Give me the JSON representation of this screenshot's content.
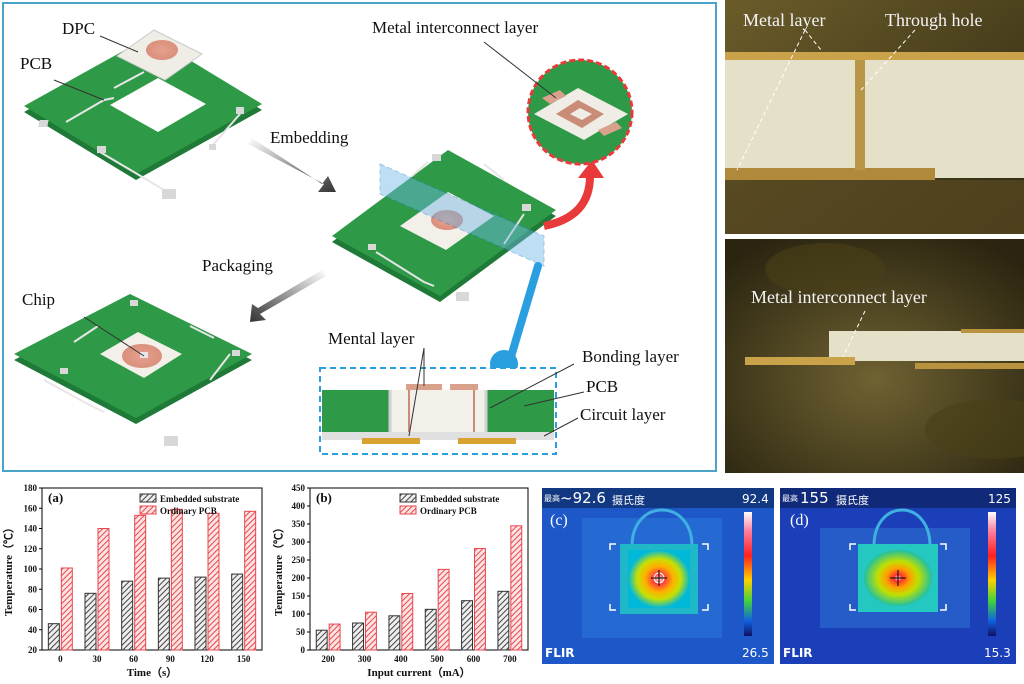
{
  "schematic": {
    "labels": {
      "dpc": "DPC",
      "pcb_top": "PCB",
      "metal_interconnect": "Metal interconnect layer",
      "embedding": "Embedding",
      "packaging": "Packaging",
      "chip": "Chip",
      "mental_layer": "Mental layer",
      "bonding_layer": "Bonding layer",
      "pcb_cross": "PCB",
      "circuit_layer": "Circuit layer"
    }
  },
  "photos": {
    "top": {
      "metal_layer": "Metal layer",
      "through_hole": "Through hole"
    },
    "bottom": {
      "metal_interconnect": "Metal interconnect layer"
    }
  },
  "chart_data": [
    {
      "type": "bar",
      "panel": "(a)",
      "xlabel": "Time（s）",
      "ylabel": "Temperature（℃）",
      "categories": [
        "0",
        "30",
        "60",
        "90",
        "120",
        "150"
      ],
      "ylim": [
        20,
        180
      ],
      "yticks": [
        20,
        40,
        60,
        80,
        100,
        120,
        140,
        160,
        180
      ],
      "legend_position": "top-right",
      "series": [
        {
          "name": "Embedded substrate",
          "values": [
            46,
            76,
            88,
            91,
            92,
            95
          ]
        },
        {
          "name": "Ordinary PCB",
          "values": [
            101,
            140,
            153,
            159,
            155,
            157
          ]
        }
      ]
    },
    {
      "type": "bar",
      "panel": "(b)",
      "xlabel": "Input current（mA）",
      "ylabel": "Temperature（℃）",
      "categories": [
        "200",
        "300",
        "400",
        "500",
        "600",
        "700"
      ],
      "ylim": [
        0,
        450
      ],
      "yticks": [
        0,
        50,
        100,
        150,
        200,
        250,
        300,
        350,
        400,
        450
      ],
      "legend_position": "top-left",
      "series": [
        {
          "name": "Embedded substrate",
          "values": [
            55,
            75,
            95,
            113,
            137,
            163
          ]
        },
        {
          "name": "Ordinary PCB",
          "values": [
            72,
            105,
            157,
            224,
            282,
            345
          ]
        }
      ]
    }
  ],
  "thermal": {
    "c": {
      "panel": "(c)",
      "readout": "~92.6",
      "unit": "摄氏度",
      "max": "92.4",
      "min": "26.5",
      "brand": "FLIR",
      "corner": "最高"
    },
    "d": {
      "panel": "(d)",
      "readout": "155",
      "unit": "摄氏度",
      "max": "125",
      "min": "15.3",
      "brand": "FLIR",
      "corner": "最高"
    }
  },
  "colors": {
    "pcb_green": "#2e9a47",
    "ordinary_bar": "#e8474c",
    "embedded_bar": "#555555",
    "frame": "#4aa3c8",
    "arrow_red": "#e83a3a",
    "pointer_blue": "#2a9fe0"
  }
}
